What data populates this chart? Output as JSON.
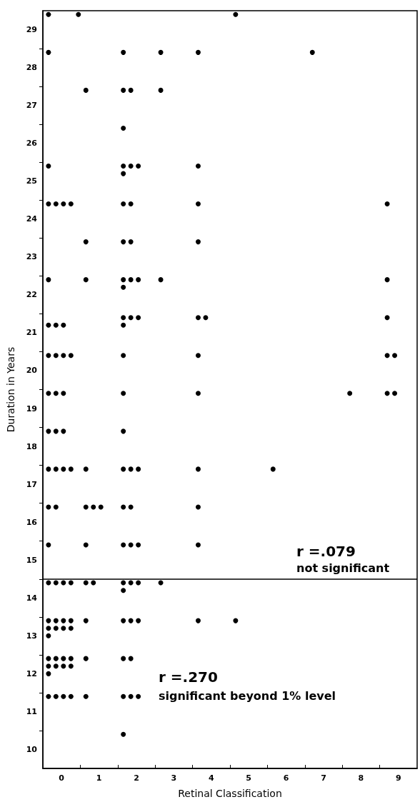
{
  "chart_data": {
    "type": "scatter",
    "xlabel": "Retinal Classification",
    "ylabel": "Duration in Years",
    "annotations": [
      "r =.079",
      "not significant",
      "r =.270",
      "significant beyond 1% level"
    ],
    "xlim": [
      -0.5,
      9.5
    ],
    "ylim": [
      9.5,
      29.5
    ],
    "xticks": [
      0,
      {
        "value": 0.5,
        "label": null
      },
      1,
      {
        "value": 1.5,
        "label": null
      },
      2,
      {
        "value": 2.5,
        "label": null
      },
      3,
      {
        "value": 3.5,
        "label": null
      },
      4,
      {
        "value": 4.5,
        "label": null
      },
      5,
      {
        "value": 5.5,
        "label": null
      },
      6,
      {
        "value": 6.5,
        "label": null
      },
      7,
      {
        "value": 7.5,
        "label": null
      },
      8,
      {
        "value": 8.5,
        "label": null
      },
      9
    ],
    "yticks": [
      10,
      {
        "value": 10.5,
        "label": null
      },
      11,
      {
        "value": 11.5,
        "label": null
      },
      12,
      {
        "value": 12.5,
        "label": null
      },
      13,
      {
        "value": 13.5,
        "label": null
      },
      14,
      {
        "value": 14.5,
        "label": null
      },
      15,
      {
        "value": 15.5,
        "label": null
      },
      16,
      {
        "value": 16.5,
        "label": null
      },
      17,
      {
        "value": 17.5,
        "label": null
      },
      18,
      {
        "value": 18.5,
        "label": null
      },
      19,
      {
        "value": 19.5,
        "label": null
      },
      20,
      {
        "value": 20.5,
        "label": null
      },
      21,
      {
        "value": 21.5,
        "label": null
      },
      22,
      {
        "value": 22.5,
        "label": null
      },
      23,
      {
        "value": 23.5,
        "label": null
      },
      24,
      {
        "value": 24.5,
        "label": null
      },
      25,
      {
        "value": 25.5,
        "label": null
      },
      26,
      {
        "value": 26.5,
        "label": null
      },
      27,
      {
        "value": 27.5,
        "label": null
      },
      28,
      {
        "value": 28.5,
        "label": null
      },
      29
    ],
    "ref_lines": [
      {
        "axis": "y",
        "value": 14.5,
        "color": "#000000"
      }
    ],
    "grid": false,
    "marker": "circle",
    "series": [
      {
        "color": "#000000",
        "x": [
          -0.35,
          0.45,
          4.65,
          -0.35,
          1.65,
          2.65,
          3.65,
          6.7,
          0.65,
          1.65,
          1.85,
          2.65,
          1.65,
          -0.35,
          1.65,
          1.85,
          2.05,
          3.65,
          1.65,
          -0.35,
          -0.15,
          0.05,
          0.25,
          1.65,
          1.85,
          3.65,
          8.7,
          0.65,
          1.65,
          1.85,
          3.65,
          -0.35,
          0.65,
          1.65,
          1.85,
          2.05,
          2.65,
          8.7,
          1.65,
          1.65,
          1.85,
          2.05,
          3.65,
          3.85,
          8.7,
          -0.35,
          -0.15,
          0.05,
          1.65,
          -0.35,
          -0.15,
          0.05,
          0.25,
          1.65,
          3.65,
          8.7,
          8.9,
          -0.35,
          -0.15,
          0.05,
          1.65,
          3.65,
          7.7,
          8.7,
          8.9,
          -0.35,
          -0.15,
          0.05,
          1.65,
          -0.35,
          -0.15,
          0.05,
          0.25,
          0.65,
          1.65,
          1.85,
          2.05,
          3.65,
          5.65,
          -0.35,
          -0.15,
          0.65,
          0.85,
          1.05,
          1.65,
          1.85,
          3.65,
          -0.35,
          0.65,
          1.65,
          1.85,
          2.05,
          3.65,
          -0.35,
          -0.15,
          0.05,
          0.25,
          0.65,
          0.85,
          1.65,
          1.85,
          2.05,
          2.65,
          1.65,
          -0.35,
          -0.15,
          0.05,
          0.25,
          0.65,
          1.65,
          1.85,
          2.05,
          3.65,
          4.65,
          -0.35,
          -0.15,
          0.05,
          0.25,
          -0.35,
          -0.35,
          -0.15,
          0.05,
          0.25,
          0.65,
          1.65,
          1.85,
          -0.35,
          -0.15,
          0.05,
          0.25,
          -0.35,
          -0.35,
          -0.15,
          0.05,
          0.25,
          0.65,
          1.65,
          1.85,
          2.05,
          1.65
        ],
        "values": [
          29.4,
          29.4,
          29.4,
          28.4,
          28.4,
          28.4,
          28.4,
          28.4,
          27.4,
          27.4,
          27.4,
          27.4,
          26.4,
          25.4,
          25.4,
          25.4,
          25.4,
          25.4,
          25.2,
          24.4,
          24.4,
          24.4,
          24.4,
          24.4,
          24.4,
          24.4,
          24.4,
          23.4,
          23.4,
          23.4,
          23.4,
          22.4,
          22.4,
          22.4,
          22.4,
          22.4,
          22.4,
          22.4,
          22.2,
          21.4,
          21.4,
          21.4,
          21.4,
          21.4,
          21.4,
          21.2,
          21.2,
          21.2,
          21.2,
          20.4,
          20.4,
          20.4,
          20.4,
          20.4,
          20.4,
          20.4,
          20.4,
          19.4,
          19.4,
          19.4,
          19.4,
          19.4,
          19.4,
          19.4,
          19.4,
          18.4,
          18.4,
          18.4,
          18.4,
          17.4,
          17.4,
          17.4,
          17.4,
          17.4,
          17.4,
          17.4,
          17.4,
          17.4,
          17.4,
          16.4,
          16.4,
          16.4,
          16.4,
          16.4,
          16.4,
          16.4,
          16.4,
          15.4,
          15.4,
          15.4,
          15.4,
          15.4,
          15.4,
          14.4,
          14.4,
          14.4,
          14.4,
          14.4,
          14.4,
          14.4,
          14.4,
          14.4,
          14.4,
          14.2,
          13.4,
          13.4,
          13.4,
          13.4,
          13.4,
          13.4,
          13.4,
          13.4,
          13.4,
          13.4,
          13.2,
          13.2,
          13.2,
          13.2,
          13.0,
          12.4,
          12.4,
          12.4,
          12.4,
          12.4,
          12.4,
          12.4,
          12.2,
          12.2,
          12.2,
          12.2,
          12.0,
          11.4,
          11.4,
          11.4,
          11.4,
          11.4,
          11.4,
          11.4,
          11.4,
          10.4
        ]
      }
    ]
  }
}
